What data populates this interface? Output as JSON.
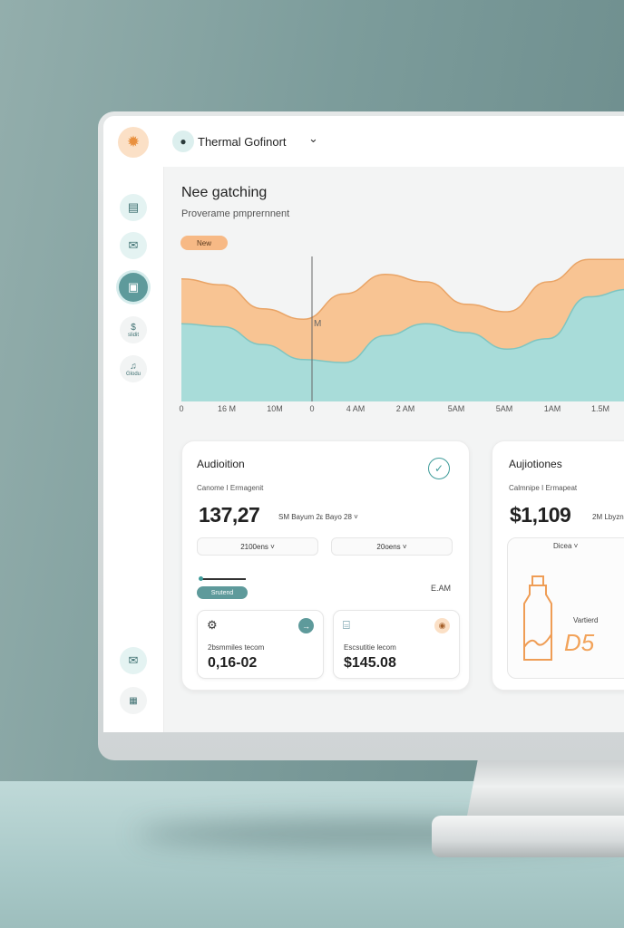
{
  "app": {
    "title": "Thermal Gofinort"
  },
  "main": {
    "title": "Nee gatching",
    "subtitle": "Proverame pmprernnent",
    "tag": "New"
  },
  "icons": {
    "logo": "sun-icon",
    "nav": [
      "document-icon",
      "mail-icon",
      "image-icon",
      "dollar-icon",
      "bell-icon"
    ],
    "bottom": [
      "mail-icon",
      "grid-icon"
    ]
  },
  "sidebar": {
    "dollar_label": "$",
    "dollar_sub": "slidit",
    "bell_sub": "Glodu"
  },
  "chart_data": {
    "type": "area",
    "x_tick_labels": [
      "0",
      "16 M",
      "10M",
      "0",
      "4 AM",
      "2 AM",
      "5AM",
      "5AM",
      "1AM",
      "1.5M"
    ],
    "cursor_label": "M",
    "series": [
      {
        "color": "#a8dcd9",
        "values": [
          0.52,
          0.5,
          0.38,
          0.28,
          0.26,
          0.44,
          0.52,
          0.46,
          0.35,
          0.42,
          0.7,
          0.75
        ]
      },
      {
        "color": "#f8c493",
        "values": [
          0.82,
          0.78,
          0.62,
          0.55,
          0.72,
          0.85,
          0.8,
          0.65,
          0.6,
          0.8,
          0.95,
          0.95
        ]
      }
    ],
    "colors": {
      "lower": "#a8dcd9",
      "upper": "#f8c493"
    }
  },
  "card1": {
    "title": "Audioition",
    "subtitle": "Canome I Ermagenit",
    "big_value": "137,27",
    "inline_text": "SM Bayum  2ε Bayo 28 ˅",
    "select1": "2100ens ˅",
    "select2": "20oens ˅",
    "badge": "Srutend",
    "right_label": "E.AM",
    "mini1": {
      "label": "2bsmmiles tecom",
      "value": "0,16-02",
      "icon": "gear-icon"
    },
    "mini2": {
      "label": "Escsutitie lecom",
      "value": "$145.08",
      "icon": "wallet-icon"
    }
  },
  "card2": {
    "title": "Aujiotiones",
    "subtitle": "Calmnipe I Ermapeat",
    "big_value": "$1,109",
    "inline_text": "2M Lbyzn",
    "select": "Dicea ˅",
    "inner_label": "Vartierd",
    "inner_value": "D5"
  }
}
